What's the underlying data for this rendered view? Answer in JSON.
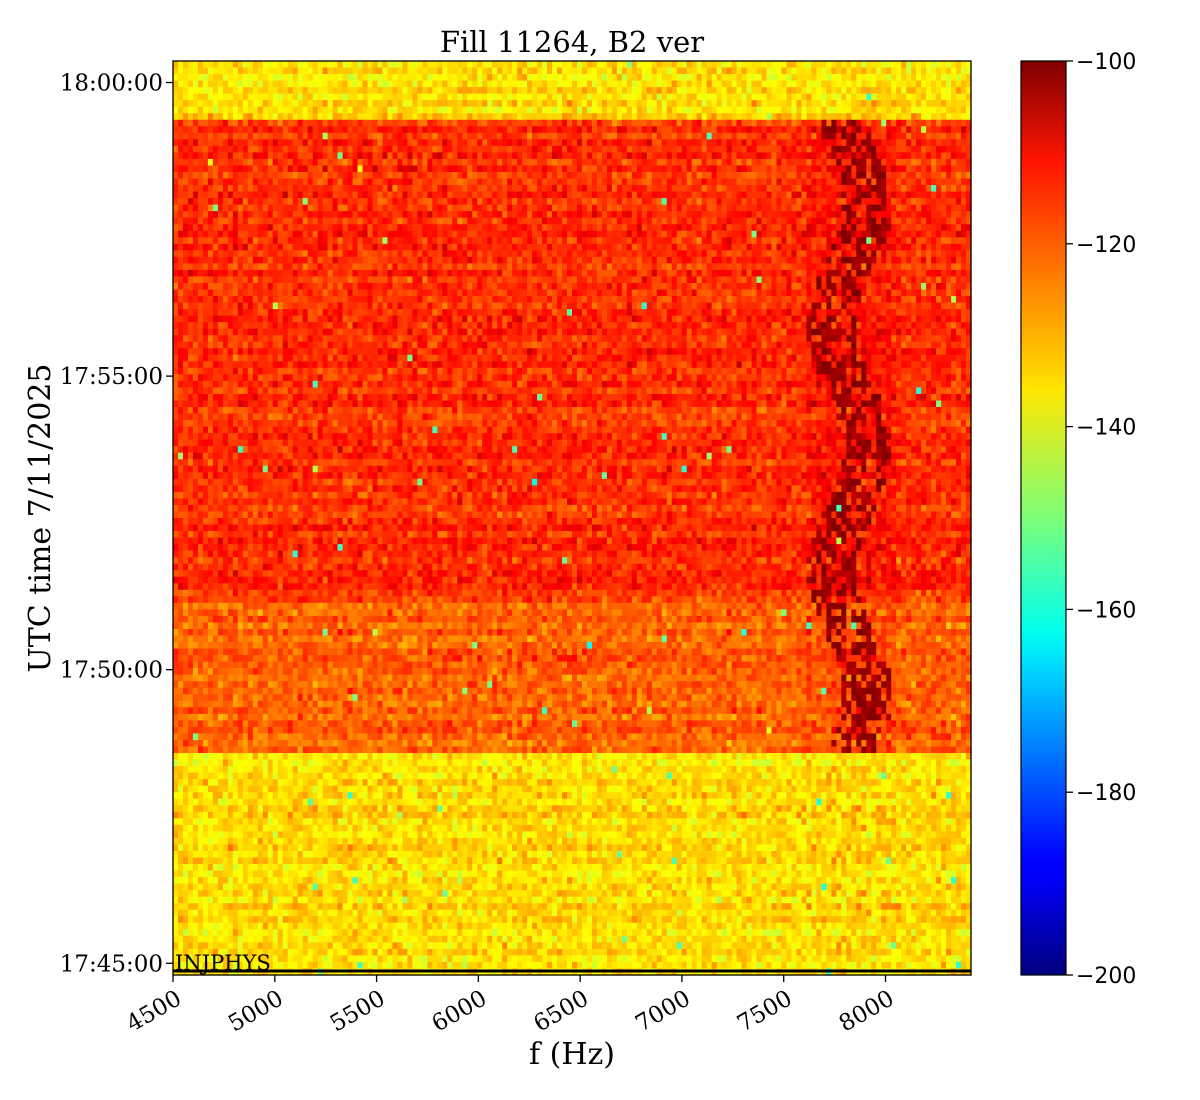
{
  "chart_data": {
    "type": "heatmap",
    "title": "Fill 11264, B2 ver",
    "xlabel": "f (Hz)",
    "ylabel": "UTC time 7/11/2025",
    "x_range_hz": [
      4500,
      8420
    ],
    "x_ticks": [
      4500,
      5000,
      5500,
      6000,
      6500,
      7000,
      7500,
      8000
    ],
    "x_tick_labels": [
      "4500",
      "5000",
      "5500",
      "6000",
      "6500",
      "7000",
      "7500",
      "8000"
    ],
    "y_range": [
      "17:44:48",
      "18:00:22"
    ],
    "y_ticks": [
      "17:45:00",
      "17:50:00",
      "17:55:00",
      "18:00:00"
    ],
    "y_tick_labels": [
      "17:45:00",
      "17:50:00",
      "17:55:00",
      "18:00:00"
    ],
    "colormap": "jet",
    "color_range": [
      -200,
      -100
    ],
    "colorbar_ticks": [
      -100,
      -120,
      -140,
      -160,
      -180,
      -200
    ],
    "colorbar_tick_labels": [
      "−100",
      "−120",
      "−140",
      "−160",
      "−180",
      "−200"
    ],
    "regions": [
      {
        "start": "17:44:48",
        "end": "17:48:32",
        "mean_level": -134
      },
      {
        "start": "17:48:32",
        "end": "17:51:10",
        "mean_level": -122
      },
      {
        "start": "17:51:10",
        "end": "17:59:20",
        "mean_level": -117
      },
      {
        "start": "17:59:20",
        "end": "18:00:22",
        "mean_level": -134
      }
    ],
    "feature": {
      "description_band_hz": [
        7600,
        8050
      ],
      "level": -102
    },
    "annotation": {
      "text": "INJPHYS",
      "time": "17:45:00",
      "position": "bottom-left"
    },
    "grid": false
  }
}
